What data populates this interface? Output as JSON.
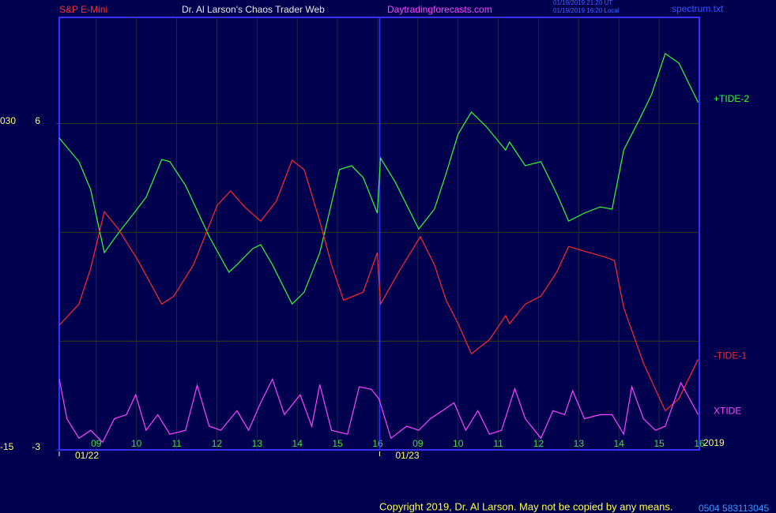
{
  "chart_data": {
    "type": "line",
    "header": {
      "symbol": "S&P E-Mini",
      "site_title": "Dr. Al Larson's Chaos Trader Web",
      "url": "Daytradingforecasts.com",
      "time_ut": "01/19/2019 21:20 UT",
      "time_local": "01/19/2019 16:20 Local",
      "file": "spectrum.txt"
    },
    "footer": {
      "copyright": "Copyright 2019, Dr. Al Larson. May not be copied by any means.",
      "code": "0504  583113045"
    },
    "year_label": "2019",
    "xlim": [
      0.08,
      16
    ],
    "xticks": [
      {
        "value": 1,
        "label": "09"
      },
      {
        "value": 2,
        "label": "10"
      },
      {
        "value": 3,
        "label": "11"
      },
      {
        "value": 4,
        "label": "12"
      },
      {
        "value": 5,
        "label": "13"
      },
      {
        "value": 6,
        "label": "14"
      },
      {
        "value": 7,
        "label": "15"
      },
      {
        "value": 8,
        "label": "16"
      },
      {
        "value": 9,
        "label": "09"
      },
      {
        "value": 10,
        "label": "10"
      },
      {
        "value": 11,
        "label": "11"
      },
      {
        "value": 12,
        "label": "12"
      },
      {
        "value": 13,
        "label": "13"
      },
      {
        "value": 14,
        "label": "14"
      },
      {
        "value": 15,
        "label": "15"
      },
      {
        "value": 16,
        "label": "16"
      }
    ],
    "day_ticks": [
      {
        "value": 0.08,
        "label": "01/22"
      },
      {
        "value": 8.05,
        "label": "01/23"
      }
    ],
    "ylim": [
      -3,
      8.93
    ],
    "yticks": [
      {
        "value": 6,
        "label": "6"
      },
      {
        "value": -3,
        "label": "-3"
      }
    ],
    "y2lim": [
      -15,
      44.65
    ],
    "y2ticks": [
      {
        "value": 30,
        "label": "030"
      },
      {
        "value": -15,
        "label": "-15"
      }
    ],
    "ygrid": [
      0,
      3,
      6
    ],
    "grid": true,
    "series": [
      {
        "name": "+TIDE-2",
        "color": "#33ff33",
        "x": [
          0.08,
          0.57,
          0.86,
          1.2,
          1.55,
          1.94,
          2.24,
          2.63,
          2.83,
          3.22,
          3.81,
          4.3,
          4.5,
          4.89,
          5.09,
          5.38,
          5.87,
          6.17,
          6.56,
          7.05,
          7.35,
          7.64,
          7.99,
          8.07,
          8.43,
          9.02,
          9.41,
          9.7,
          10.0,
          10.33,
          10.69,
          11.18,
          11.28,
          11.67,
          12.06,
          12.45,
          12.75,
          13.14,
          13.53,
          13.83,
          14.12,
          14.52,
          14.81,
          15.15,
          15.49,
          15.97
        ],
        "values": [
          5.6,
          4.95,
          4.18,
          2.44,
          2.98,
          3.53,
          3.97,
          5.01,
          4.95,
          4.29,
          2.88,
          1.9,
          2.11,
          2.55,
          2.66,
          2.11,
          1.02,
          1.35,
          2.44,
          4.73,
          4.84,
          4.51,
          3.53,
          5.05,
          4.4,
          3.09,
          3.64,
          4.62,
          5.71,
          6.32,
          5.93,
          5.27,
          5.49,
          4.84,
          4.95,
          4.07,
          3.31,
          3.53,
          3.7,
          3.64,
          5.27,
          6.14,
          6.8,
          7.93,
          7.67,
          6.58
        ]
      },
      {
        "name": "-TIDE-1",
        "color": "#ff2a2a",
        "x": [
          0.08,
          0.57,
          0.86,
          1.2,
          1.55,
          2.04,
          2.63,
          2.93,
          3.42,
          4.01,
          4.34,
          4.69,
          5.09,
          5.48,
          5.87,
          6.17,
          6.56,
          6.85,
          7.15,
          7.64,
          7.99,
          8.07,
          8.52,
          9.06,
          9.41,
          9.7,
          10.0,
          10.33,
          10.78,
          11.18,
          11.28,
          11.67,
          12.06,
          12.45,
          12.75,
          13.14,
          13.63,
          13.89,
          14.12,
          14.61,
          15.15,
          15.49,
          15.97
        ],
        "values": [
          0.44,
          1.02,
          2.0,
          3.57,
          3.09,
          2.22,
          1.02,
          1.24,
          2.11,
          3.75,
          4.14,
          3.7,
          3.31,
          3.86,
          4.99,
          4.73,
          3.31,
          2.11,
          1.13,
          1.35,
          2.44,
          1.02,
          1.9,
          2.88,
          2.11,
          1.13,
          0.48,
          -0.35,
          0.04,
          0.7,
          0.48,
          1.02,
          1.24,
          1.9,
          2.61,
          2.48,
          2.33,
          2.22,
          0.92,
          -0.61,
          -1.92,
          -1.59,
          -0.5
        ]
      },
      {
        "name": "XTIDE",
        "color": "#ff44ff",
        "x": [
          0.08,
          0.27,
          0.57,
          0.86,
          1.16,
          1.45,
          1.75,
          1.98,
          2.24,
          2.53,
          2.83,
          3.22,
          3.51,
          3.81,
          4.1,
          4.5,
          4.79,
          5.09,
          5.38,
          5.68,
          6.07,
          6.36,
          6.56,
          6.85,
          7.25,
          7.54,
          7.84,
          8.03,
          8.33,
          8.72,
          9.02,
          9.31,
          9.61,
          9.9,
          10.19,
          10.49,
          10.78,
          11.08,
          11.41,
          11.67,
          12.06,
          12.36,
          12.65,
          12.85,
          13.14,
          13.53,
          13.83,
          14.12,
          14.32,
          14.61,
          14.91,
          15.15,
          15.54,
          15.97
        ],
        "values": [
          -1.05,
          -2.14,
          -2.68,
          -2.46,
          -2.79,
          -2.14,
          -2.03,
          -1.48,
          -2.46,
          -2.03,
          -2.57,
          -2.46,
          -1.22,
          -2.35,
          -2.46,
          -1.92,
          -2.46,
          -1.7,
          -1.05,
          -2.03,
          -1.48,
          -2.35,
          -1.2,
          -2.46,
          -2.57,
          -1.26,
          -1.33,
          -1.59,
          -2.68,
          -2.35,
          -2.46,
          -2.14,
          -1.92,
          -1.7,
          -2.46,
          -1.92,
          -2.57,
          -2.46,
          -1.31,
          -2.14,
          -2.68,
          -1.92,
          -2.03,
          -1.37,
          -2.14,
          -2.03,
          -2.03,
          -2.57,
          -1.26,
          -2.14,
          -2.46,
          -2.35,
          -1.15,
          -2.03
        ]
      }
    ]
  }
}
